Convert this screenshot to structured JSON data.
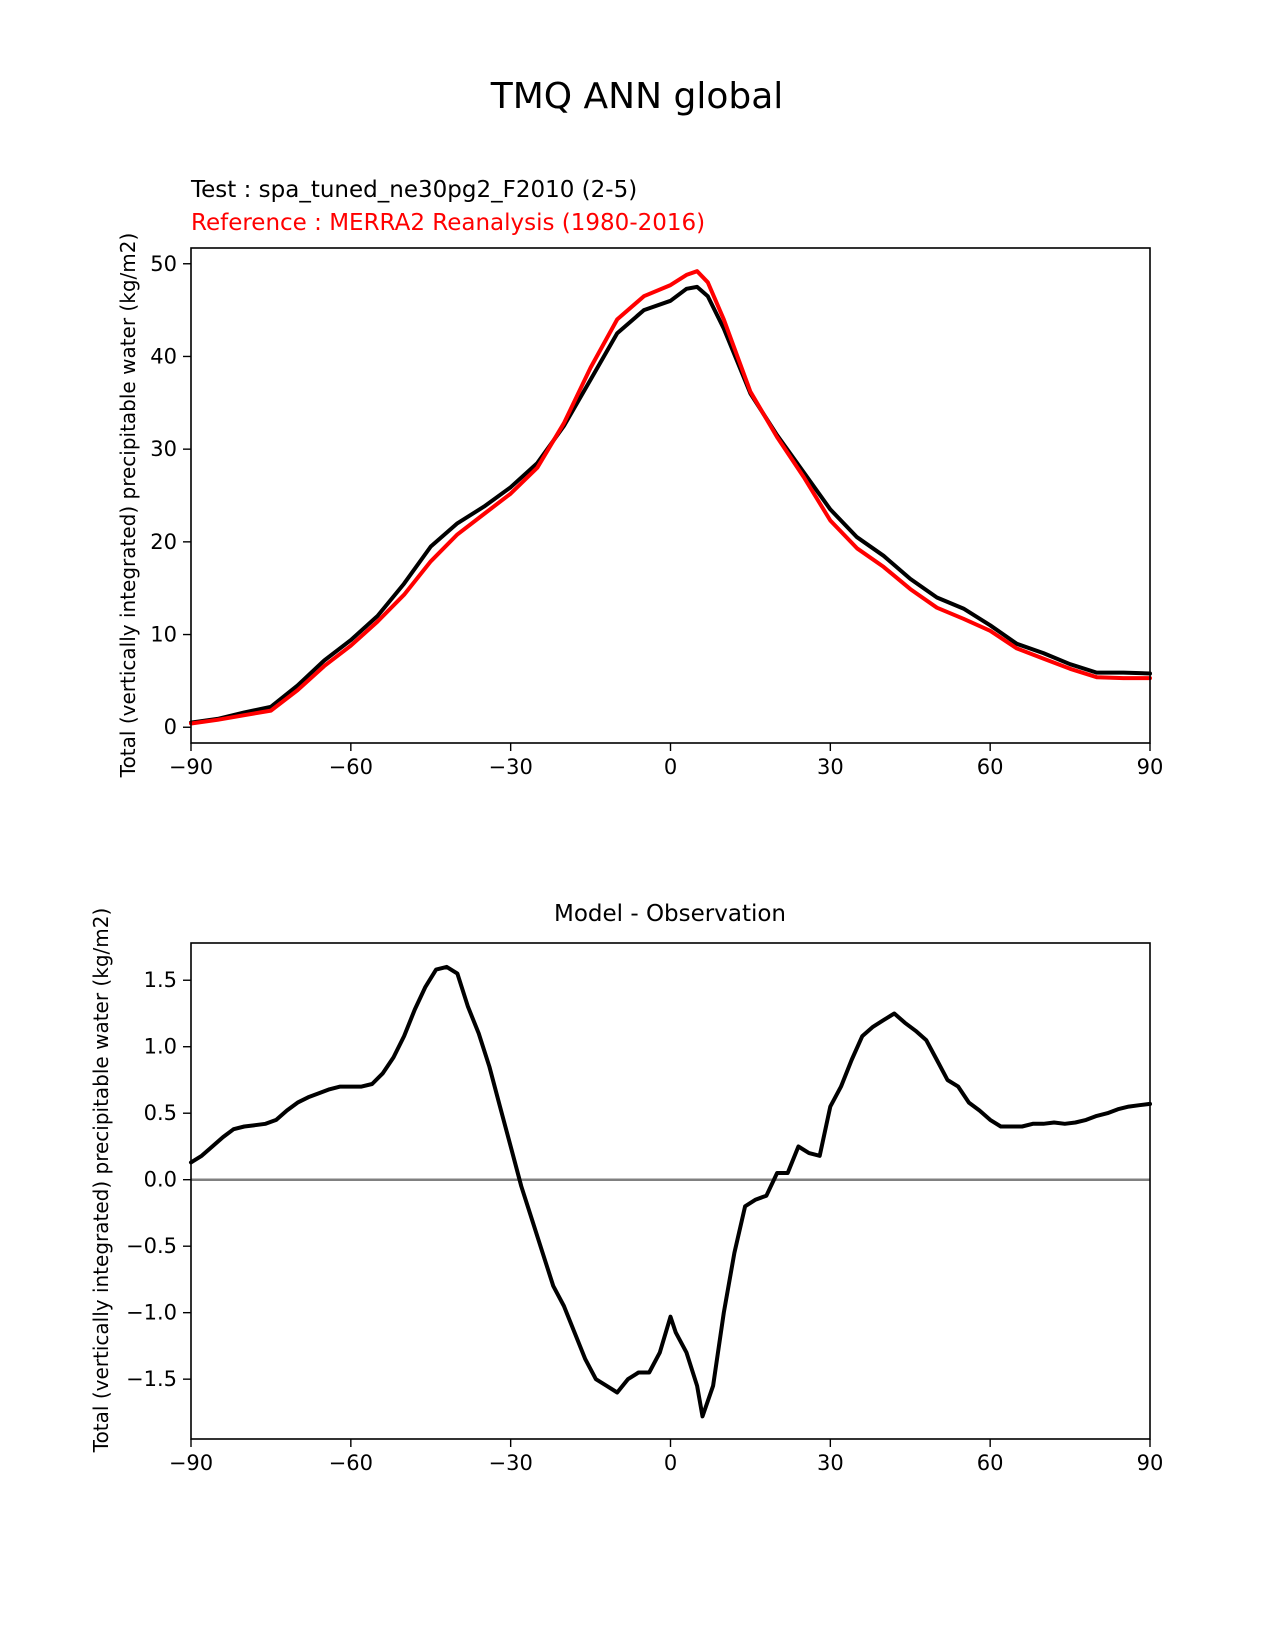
{
  "figure": {
    "title": "TMQ ANN global"
  },
  "chart_data": [
    {
      "type": "line",
      "subtitle_test": "Test : spa_tuned_ne30pg2_F2010 (2-5)",
      "subtitle_reference": "Reference : MERRA2 Reanalysis (1980-2016)",
      "ylabel": "Total (vertically integrated) precipitable water (kg/m2)",
      "xlim": [
        -90,
        90
      ],
      "ylim": [
        -1.7,
        51.7
      ],
      "x_ticks": [
        -90,
        -60,
        -30,
        0,
        30,
        60,
        90
      ],
      "x_tick_labels": [
        "−90",
        "−60",
        "−30",
        "0",
        "30",
        "60",
        "90"
      ],
      "y_ticks": [
        0,
        10,
        20,
        30,
        40,
        50
      ],
      "y_tick_labels": [
        "0",
        "10",
        "20",
        "30",
        "40",
        "50"
      ],
      "grid": false,
      "x": [
        -90,
        -85,
        -80,
        -75,
        -70,
        -65,
        -60,
        -55,
        -50,
        -45,
        -40,
        -35,
        -30,
        -25,
        -20,
        -15,
        -10,
        -5,
        0,
        3,
        5,
        7,
        10,
        15,
        20,
        25,
        30,
        35,
        40,
        45,
        50,
        55,
        60,
        65,
        70,
        75,
        80,
        85,
        90
      ],
      "series": [
        {
          "color": "#000000",
          "values": [
            0.5,
            0.9,
            1.6,
            2.2,
            4.5,
            7.2,
            9.4,
            12.0,
            15.5,
            19.5,
            22.0,
            23.8,
            25.9,
            28.5,
            32.5,
            37.5,
            42.5,
            45.0,
            46.0,
            47.3,
            47.5,
            46.5,
            43.0,
            36.0,
            31.5,
            27.5,
            23.5,
            20.5,
            18.5,
            16.0,
            14.0,
            12.8,
            11.0,
            9.0,
            8.0,
            6.8,
            5.9,
            5.9,
            5.8
          ]
        },
        {
          "color": "#ff0000",
          "values": [
            0.4,
            0.8,
            1.3,
            1.8,
            4.0,
            6.6,
            8.8,
            11.4,
            14.3,
            17.9,
            20.8,
            23.0,
            25.2,
            28.0,
            32.8,
            38.8,
            44.0,
            46.5,
            47.7,
            48.8,
            49.2,
            48.0,
            44.0,
            36.2,
            31.3,
            27.0,
            22.3,
            19.3,
            17.3,
            14.9,
            12.9,
            11.7,
            10.4,
            8.5,
            7.4,
            6.3,
            5.4,
            5.3,
            5.3
          ]
        }
      ]
    },
    {
      "type": "line",
      "title": "Model - Observation",
      "ylabel": "Total (vertically integrated) precipitable water (kg/m2)",
      "xlim": [
        -90,
        90
      ],
      "ylim": [
        -1.95,
        1.78
      ],
      "x_ticks": [
        -90,
        -60,
        -30,
        0,
        30,
        60,
        90
      ],
      "x_tick_labels": [
        "−90",
        "−60",
        "−30",
        "0",
        "30",
        "60",
        "90"
      ],
      "y_ticks": [
        -1.5,
        -1.0,
        -0.5,
        0.0,
        0.5,
        1.0,
        1.5
      ],
      "y_tick_labels": [
        "−1.5",
        "−1.0",
        "−0.5",
        "0.0",
        "0.5",
        "1.0",
        "1.5"
      ],
      "zero_line_color": "#808080",
      "grid": false,
      "x": [
        -90,
        -88,
        -86,
        -84,
        -82,
        -80,
        -78,
        -76,
        -74,
        -72,
        -70,
        -68,
        -66,
        -64,
        -62,
        -60,
        -58,
        -56,
        -54,
        -52,
        -50,
        -48,
        -46,
        -44,
        -42,
        -40,
        -38,
        -36,
        -34,
        -32,
        -30,
        -28,
        -26,
        -24,
        -22,
        -20,
        -18,
        -16,
        -14,
        -12,
        -10,
        -8,
        -6,
        -4,
        -2,
        0,
        1,
        3,
        5,
        6,
        8,
        10,
        12,
        14,
        16,
        18,
        20,
        22,
        24,
        26,
        28,
        30,
        32,
        34,
        36,
        38,
        40,
        42,
        44,
        46,
        48,
        50,
        52,
        54,
        56,
        58,
        60,
        62,
        64,
        66,
        68,
        70,
        72,
        74,
        76,
        78,
        80,
        82,
        84,
        86,
        88,
        90
      ],
      "series": [
        {
          "color": "#000000",
          "values": [
            0.13,
            0.18,
            0.25,
            0.32,
            0.38,
            0.4,
            0.41,
            0.42,
            0.45,
            0.52,
            0.58,
            0.62,
            0.65,
            0.68,
            0.7,
            0.7,
            0.7,
            0.72,
            0.8,
            0.92,
            1.08,
            1.28,
            1.45,
            1.58,
            1.6,
            1.55,
            1.3,
            1.1,
            0.85,
            0.55,
            0.25,
            -0.05,
            -0.3,
            -0.55,
            -0.8,
            -0.95,
            -1.15,
            -1.35,
            -1.5,
            -1.55,
            -1.6,
            -1.5,
            -1.45,
            -1.45,
            -1.3,
            -1.03,
            -1.15,
            -1.3,
            -1.55,
            -1.78,
            -1.55,
            -1.0,
            -0.55,
            -0.2,
            -0.15,
            -0.12,
            0.05,
            0.05,
            0.25,
            0.2,
            0.18,
            0.55,
            0.7,
            0.9,
            1.08,
            1.15,
            1.2,
            1.25,
            1.18,
            1.12,
            1.05,
            0.9,
            0.75,
            0.7,
            0.58,
            0.52,
            0.45,
            0.4,
            0.4,
            0.4,
            0.42,
            0.42,
            0.43,
            0.42,
            0.43,
            0.45,
            0.48,
            0.5,
            0.53,
            0.55,
            0.56,
            0.57
          ]
        }
      ]
    }
  ]
}
